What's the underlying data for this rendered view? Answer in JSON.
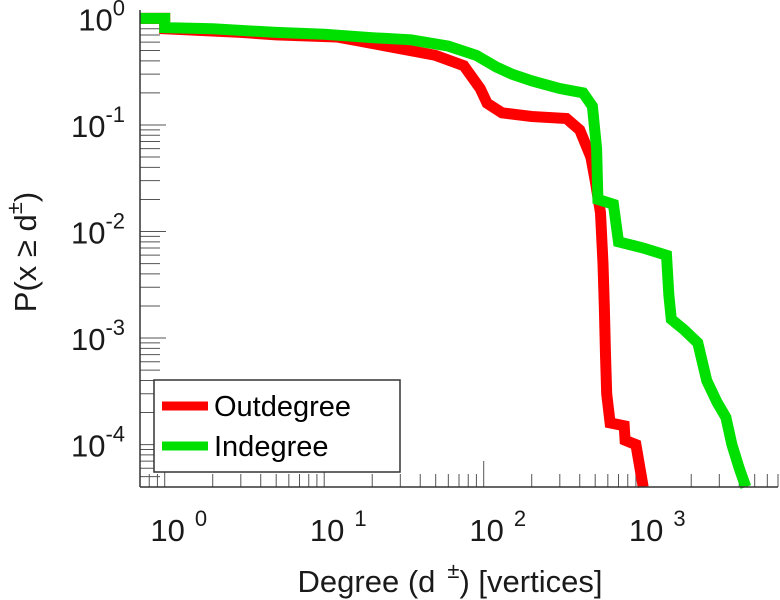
{
  "chart_data": {
    "type": "line",
    "title": "",
    "xlabel": "Degree (d",
    "xlabel_sup": "±",
    "xlabel_suffix": ") [vertices]",
    "ylabel": "P(x ≥ d",
    "ylabel_sup": "±",
    "ylabel_suffix": ")",
    "xscale": "log",
    "yscale": "log",
    "xlim": [
      0.7,
      7000
    ],
    "ylim": [
      4e-05,
      1.2
    ],
    "x_ticks": [
      1,
      10,
      100,
      1000
    ],
    "x_tick_labels": [
      {
        "base": "10",
        "exp": "0"
      },
      {
        "base": "10",
        "exp": "1"
      },
      {
        "base": "10",
        "exp": "2"
      },
      {
        "base": "10",
        "exp": "3"
      }
    ],
    "y_ticks": [
      1,
      0.1,
      0.01,
      0.001,
      0.0001
    ],
    "y_tick_labels": [
      {
        "base": "10",
        "exp": "0"
      },
      {
        "base": "10",
        "exp": "-1"
      },
      {
        "base": "10",
        "exp": "-2"
      },
      {
        "base": "10",
        "exp": "-3"
      },
      {
        "base": "10",
        "exp": "-4"
      }
    ],
    "legend_position": "bottom-left",
    "series": [
      {
        "name": "Outdegree",
        "color": "#ff0000",
        "points": [
          [
            0.7,
            1.0
          ],
          [
            1,
            1.0
          ],
          [
            1,
            0.8
          ],
          [
            3,
            0.74
          ],
          [
            5,
            0.7
          ],
          [
            12,
            0.67
          ],
          [
            16,
            0.62
          ],
          [
            30,
            0.52
          ],
          [
            50,
            0.45
          ],
          [
            75,
            0.36
          ],
          [
            95,
            0.22
          ],
          [
            105,
            0.16
          ],
          [
            130,
            0.13
          ],
          [
            200,
            0.12
          ],
          [
            330,
            0.115
          ],
          [
            400,
            0.09
          ],
          [
            470,
            0.05
          ],
          [
            500,
            0.03
          ],
          [
            540,
            0.015
          ],
          [
            560,
            0.005
          ],
          [
            570,
            0.002
          ],
          [
            580,
            0.0007
          ],
          [
            590,
            0.0003
          ],
          [
            620,
            0.00016
          ],
          [
            760,
            0.00015
          ],
          [
            770,
            0.00011
          ],
          [
            900,
            0.0001
          ],
          [
            1000,
            4e-05
          ]
        ]
      },
      {
        "name": "Indegree",
        "color": "#00e000",
        "points": [
          [
            0.7,
            1.0
          ],
          [
            1,
            1.0
          ],
          [
            1,
            0.82
          ],
          [
            2,
            0.8
          ],
          [
            5,
            0.74
          ],
          [
            10,
            0.71
          ],
          [
            20,
            0.66
          ],
          [
            35,
            0.63
          ],
          [
            60,
            0.55
          ],
          [
            90,
            0.45
          ],
          [
            120,
            0.35
          ],
          [
            150,
            0.3
          ],
          [
            200,
            0.26
          ],
          [
            300,
            0.22
          ],
          [
            420,
            0.2
          ],
          [
            480,
            0.15
          ],
          [
            510,
            0.06
          ],
          [
            520,
            0.02
          ],
          [
            650,
            0.018
          ],
          [
            700,
            0.008
          ],
          [
            1000,
            0.007
          ],
          [
            1400,
            0.006
          ],
          [
            1450,
            0.0025
          ],
          [
            1500,
            0.0015
          ],
          [
            1800,
            0.0012
          ],
          [
            2200,
            0.0009
          ],
          [
            2500,
            0.0004
          ],
          [
            2900,
            0.00025
          ],
          [
            3300,
            0.00018
          ],
          [
            3600,
            0.0001
          ],
          [
            4000,
            6e-05
          ],
          [
            4400,
            4e-05
          ]
        ]
      }
    ]
  }
}
